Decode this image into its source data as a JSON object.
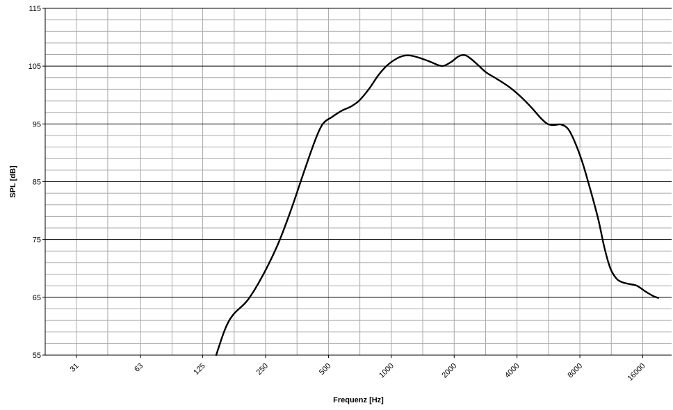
{
  "chart_data": {
    "type": "line",
    "title": "",
    "xlabel": "Frequenz [Hz]",
    "ylabel": "SPL [dB]",
    "x_scale": "log2",
    "xlim": [
      22,
      22000
    ],
    "ylim": [
      55,
      115
    ],
    "xticks": [
      31,
      63,
      125,
      250,
      500,
      1000,
      2000,
      4000,
      8000,
      16000
    ],
    "yticks": [
      55,
      65,
      75,
      85,
      95,
      105,
      115
    ],
    "grid": true,
    "series": [
      {
        "name": "",
        "color": "#000000",
        "points": [
          [
            145,
            55
          ],
          [
            160,
            59.5
          ],
          [
            175,
            62
          ],
          [
            205,
            64.5
          ],
          [
            240,
            68.5
          ],
          [
            285,
            74
          ],
          [
            330,
            80
          ],
          [
            380,
            86.5
          ],
          [
            430,
            92
          ],
          [
            470,
            95
          ],
          [
            520,
            96.2
          ],
          [
            580,
            97.3
          ],
          [
            640,
            98
          ],
          [
            700,
            99
          ],
          [
            780,
            101
          ],
          [
            870,
            103.5
          ],
          [
            960,
            105.2
          ],
          [
            1060,
            106.3
          ],
          [
            1150,
            106.8
          ],
          [
            1250,
            106.8
          ],
          [
            1400,
            106.3
          ],
          [
            1550,
            105.7
          ],
          [
            1700,
            105.1
          ],
          [
            1800,
            105.1
          ],
          [
            1950,
            105.8
          ],
          [
            2100,
            106.7
          ],
          [
            2250,
            106.9
          ],
          [
            2400,
            106.3
          ],
          [
            2600,
            105.2
          ],
          [
            2850,
            103.9
          ],
          [
            3200,
            102.8
          ],
          [
            3700,
            101.3
          ],
          [
            4200,
            99.6
          ],
          [
            4700,
            97.8
          ],
          [
            5200,
            96
          ],
          [
            5600,
            95
          ],
          [
            6000,
            94.8
          ],
          [
            6500,
            94.9
          ],
          [
            7000,
            94.2
          ],
          [
            7500,
            92.2
          ],
          [
            8200,
            88.5
          ],
          [
            9000,
            83.5
          ],
          [
            9800,
            78.5
          ],
          [
            10500,
            73.5
          ],
          [
            11200,
            70
          ],
          [
            12000,
            68.2
          ],
          [
            12800,
            67.6
          ],
          [
            13800,
            67.3
          ],
          [
            15000,
            67
          ],
          [
            16500,
            66
          ],
          [
            18000,
            65.2
          ],
          [
            19000,
            64.9
          ]
        ]
      }
    ]
  }
}
